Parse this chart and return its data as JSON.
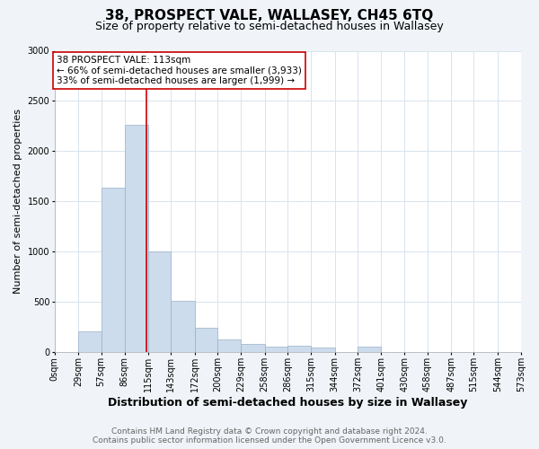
{
  "title": "38, PROSPECT VALE, WALLASEY, CH45 6TQ",
  "subtitle": "Size of property relative to semi-detached houses in Wallasey",
  "xlabel": "Distribution of semi-detached houses by size in Wallasey",
  "ylabel": "Number of semi-detached properties",
  "footer_line1": "Contains HM Land Registry data © Crown copyright and database right 2024.",
  "footer_line2": "Contains public sector information licensed under the Open Government Licence v3.0.",
  "bin_labels": [
    "0sqm",
    "29sqm",
    "57sqm",
    "86sqm",
    "115sqm",
    "143sqm",
    "172sqm",
    "200sqm",
    "229sqm",
    "258sqm",
    "286sqm",
    "315sqm",
    "344sqm",
    "372sqm",
    "401sqm",
    "430sqm",
    "458sqm",
    "487sqm",
    "515sqm",
    "544sqm",
    "573sqm"
  ],
  "bin_edges": [
    0,
    29,
    57,
    86,
    115,
    143,
    172,
    200,
    229,
    258,
    286,
    315,
    344,
    372,
    401,
    430,
    458,
    487,
    515,
    544,
    573
  ],
  "bar_heights": [
    0,
    200,
    1630,
    2260,
    1000,
    510,
    240,
    125,
    75,
    45,
    55,
    40,
    0,
    45,
    0,
    0,
    0,
    0,
    0,
    0
  ],
  "bar_color": "#ccdcec",
  "bar_edge_color": "#9ab0c8",
  "property_size": 113,
  "property_line_color": "#cc0000",
  "annotation_line1": "38 PROSPECT VALE: 113sqm",
  "annotation_line2": "← 66% of semi-detached houses are smaller (3,933)",
  "annotation_line3": "33% of semi-detached houses are larger (1,999) →",
  "annotation_box_color": "#ffffff",
  "annotation_box_edge_color": "#cc0000",
  "ylim": [
    0,
    3000
  ],
  "yticks": [
    0,
    500,
    1000,
    1500,
    2000,
    2500,
    3000
  ],
  "background_color": "#f0f4f8",
  "plot_background_color": "#ffffff",
  "grid_color": "#d8e4ee",
  "title_fontsize": 11,
  "subtitle_fontsize": 9,
  "xlabel_fontsize": 9,
  "ylabel_fontsize": 8,
  "tick_fontsize": 7,
  "annot_fontsize": 7.5,
  "footer_fontsize": 6.5
}
